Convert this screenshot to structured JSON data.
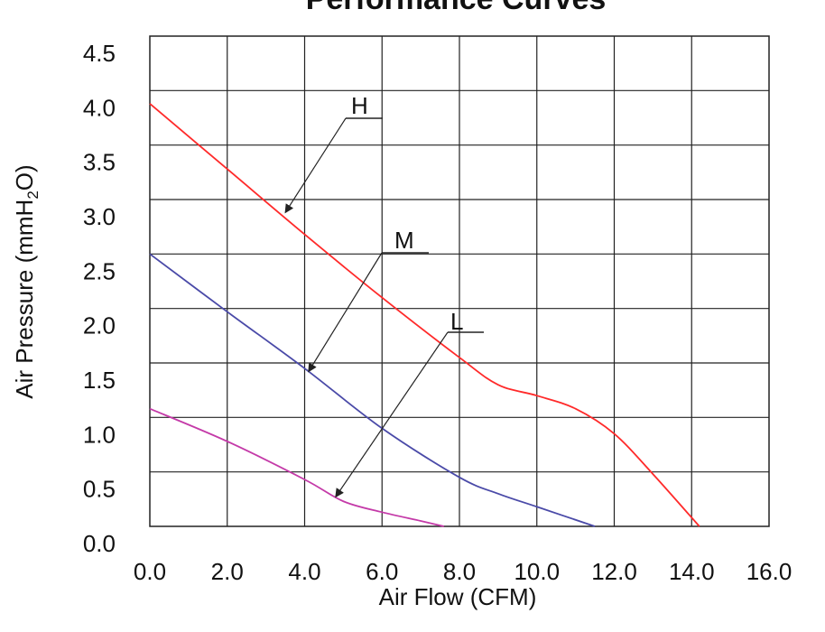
{
  "chart_data": {
    "type": "line",
    "title": "Performance Curves",
    "xlabel": "Air Flow (CFM)",
    "ylabel": "Air Pressure (mmH2O)",
    "xlim": [
      0,
      16
    ],
    "ylim": [
      0,
      4.5
    ],
    "grid": true,
    "x_ticks": [
      "0.0",
      "2.0",
      "4.0",
      "6.0",
      "8.0",
      "10.0",
      "12.0",
      "14.0",
      "16.0"
    ],
    "y_ticks": [
      "0.0",
      "0.5",
      "1.0",
      "1.5",
      "2.0",
      "2.5",
      "3.0",
      "3.5",
      "4.0",
      "4.5"
    ],
    "series": [
      {
        "name": "H",
        "color": "#ff2a2a",
        "x": [
          0,
          2,
          4,
          6,
          8,
          9,
          10,
          11,
          12,
          13,
          14.2
        ],
        "y": [
          3.88,
          3.28,
          2.68,
          2.1,
          1.55,
          1.3,
          1.2,
          1.08,
          0.85,
          0.48,
          0.0
        ]
      },
      {
        "name": "M",
        "color": "#4a4aa8",
        "x": [
          0,
          2,
          4,
          6,
          8,
          9,
          10,
          11.5
        ],
        "y": [
          2.5,
          1.97,
          1.45,
          0.9,
          0.45,
          0.3,
          0.18,
          0.0
        ]
      },
      {
        "name": "L",
        "color": "#c43aa8",
        "x": [
          0,
          2,
          4,
          5,
          6,
          7,
          7.6
        ],
        "y": [
          1.08,
          0.78,
          0.43,
          0.23,
          0.13,
          0.05,
          0.0
        ]
      }
    ]
  }
}
